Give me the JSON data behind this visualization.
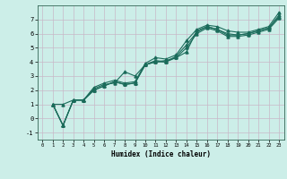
{
  "title": "",
  "xlabel": "Humidex (Indice chaleur)",
  "ylabel": "",
  "bg_color": "#cceee8",
  "grid_color": "#c8b8c8",
  "line_color": "#1a6b5a",
  "xlim": [
    -0.5,
    23.5
  ],
  "ylim": [
    -1.5,
    8.0
  ],
  "xticks": [
    0,
    1,
    2,
    3,
    4,
    5,
    6,
    7,
    8,
    9,
    10,
    11,
    12,
    13,
    14,
    15,
    16,
    17,
    18,
    19,
    20,
    21,
    22,
    23
  ],
  "yticks": [
    -1,
    0,
    1,
    2,
    3,
    4,
    5,
    6,
    7
  ],
  "series1_x": [
    1,
    2,
    3,
    4,
    5,
    6,
    7,
    8,
    9,
    10,
    11,
    12,
    13,
    14,
    15,
    16,
    17,
    18,
    19,
    20,
    21,
    22,
    23
  ],
  "series1_y": [
    1.0,
    1.0,
    1.3,
    1.3,
    2.2,
    2.5,
    2.7,
    2.5,
    2.6,
    3.9,
    4.3,
    4.2,
    4.5,
    5.5,
    6.3,
    6.6,
    6.5,
    6.2,
    6.1,
    6.1,
    6.3,
    6.5,
    7.5
  ],
  "series2_x": [
    1,
    2,
    3,
    4,
    5,
    6,
    7,
    8,
    9,
    10,
    11,
    12,
    13,
    14,
    15,
    16,
    17,
    18,
    19,
    20,
    21,
    22,
    23
  ],
  "series2_y": [
    1.0,
    -0.5,
    1.3,
    1.3,
    2.1,
    2.4,
    2.5,
    3.3,
    3.0,
    3.8,
    4.0,
    4.1,
    4.3,
    4.7,
    6.2,
    6.5,
    6.3,
    6.0,
    5.9,
    6.0,
    6.2,
    6.4,
    7.3
  ],
  "series3_x": [
    1,
    2,
    3,
    4,
    5,
    6,
    7,
    8,
    9,
    10,
    11,
    12,
    13,
    14,
    15,
    16,
    17,
    18,
    19,
    20,
    21,
    22,
    23
  ],
  "series3_y": [
    1.0,
    -0.5,
    1.3,
    1.3,
    2.0,
    2.3,
    2.6,
    2.4,
    2.5,
    3.8,
    4.1,
    4.0,
    4.4,
    5.2,
    6.1,
    6.5,
    6.3,
    5.9,
    5.9,
    6.0,
    6.2,
    6.4,
    7.2
  ],
  "series4_x": [
    1,
    2,
    3,
    4,
    5,
    6,
    7,
    8,
    9,
    10,
    11,
    12,
    13,
    14,
    15,
    16,
    17,
    18,
    19,
    20,
    21,
    22,
    23
  ],
  "series4_y": [
    1.0,
    -0.5,
    1.3,
    1.3,
    2.0,
    2.3,
    2.6,
    2.4,
    2.5,
    3.8,
    4.0,
    4.0,
    4.3,
    5.0,
    6.0,
    6.4,
    6.2,
    5.8,
    5.8,
    5.9,
    6.1,
    6.3,
    7.1
  ]
}
